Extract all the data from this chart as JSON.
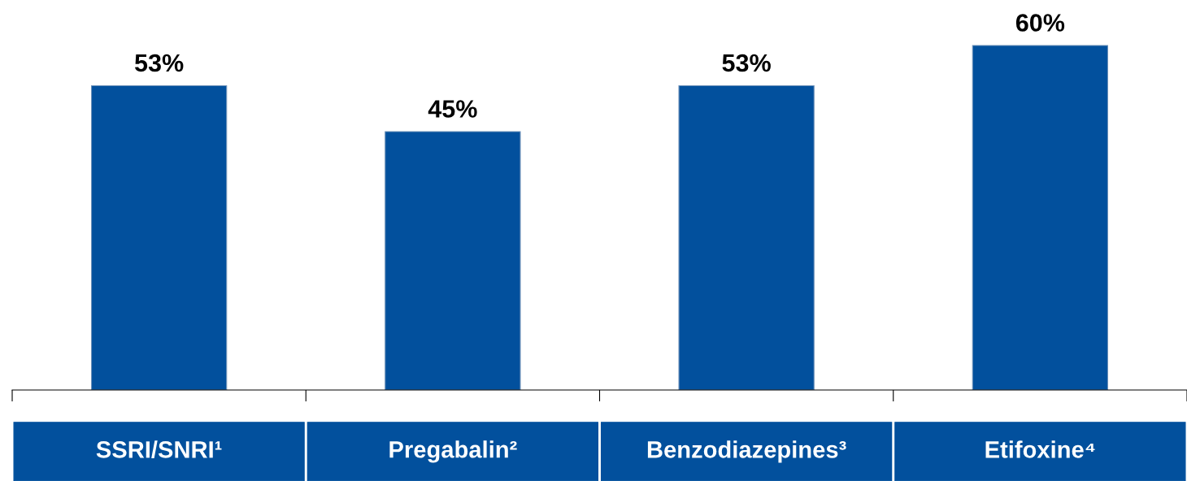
{
  "chart_data": {
    "type": "bar",
    "categories": [
      "SSRI/SNRI¹",
      "Pregabalin²",
      "Benzodiazepines³",
      "Etifoxine⁴"
    ],
    "values": [
      53,
      45,
      53,
      60
    ],
    "value_labels": [
      "53%",
      "45%",
      "53%",
      "60%"
    ],
    "color": "#02509d",
    "grid": false,
    "legend": false
  }
}
